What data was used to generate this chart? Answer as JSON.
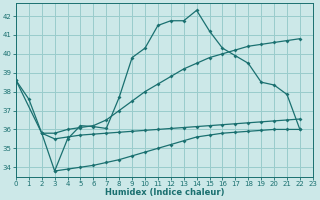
{
  "bg_color": "#cce8e8",
  "grid_color": "#99cccc",
  "line_color": "#1a7070",
  "xlabel": "Humidex (Indice chaleur)",
  "xlim": [
    0,
    23
  ],
  "ylim": [
    33.5,
    42.7
  ],
  "xticks": [
    0,
    1,
    2,
    3,
    4,
    5,
    6,
    7,
    8,
    9,
    10,
    11,
    12,
    13,
    14,
    15,
    16,
    17,
    18,
    19,
    20,
    21,
    22,
    23
  ],
  "yticks": [
    34,
    35,
    36,
    37,
    38,
    39,
    40,
    41,
    42
  ],
  "c1_x": [
    0,
    1,
    2,
    3,
    4,
    5,
    6,
    7,
    8,
    9,
    10,
    11,
    12,
    13,
    14,
    15,
    16,
    17,
    18,
    19,
    20,
    21,
    22
  ],
  "c1_y": [
    38.6,
    37.6,
    35.8,
    33.8,
    35.5,
    36.2,
    36.15,
    36.05,
    37.7,
    39.8,
    40.3,
    41.5,
    41.75,
    41.75,
    42.3,
    41.2,
    40.3,
    39.9,
    39.5,
    38.5,
    38.35,
    37.85,
    36.0
  ],
  "c2_x": [
    0,
    2,
    3,
    4,
    5,
    6,
    7,
    8,
    9,
    10,
    11,
    12,
    13,
    14,
    15,
    16,
    17,
    18,
    19,
    20,
    21,
    22
  ],
  "c2_y": [
    38.6,
    35.8,
    35.8,
    36.0,
    36.1,
    36.2,
    36.5,
    37.0,
    37.5,
    38.0,
    38.4,
    38.8,
    39.2,
    39.5,
    39.8,
    40.0,
    40.2,
    40.4,
    40.5,
    40.6,
    40.7,
    40.8
  ],
  "c3_x": [
    2,
    3,
    4,
    5,
    6,
    7,
    8,
    9,
    10,
    11,
    12,
    13,
    14,
    15,
    16,
    17,
    18,
    19,
    20,
    21,
    22
  ],
  "c3_y": [
    35.8,
    35.5,
    35.6,
    35.7,
    35.75,
    35.8,
    35.85,
    35.9,
    35.95,
    36.0,
    36.05,
    36.1,
    36.15,
    36.2,
    36.25,
    36.3,
    36.35,
    36.4,
    36.45,
    36.5,
    36.55
  ],
  "c4_x": [
    3,
    4,
    5,
    6,
    7,
    8,
    9,
    10,
    11,
    12,
    13,
    14,
    15,
    16,
    17,
    18,
    19,
    20,
    21,
    22
  ],
  "c4_y": [
    33.8,
    33.9,
    34.0,
    34.1,
    34.25,
    34.4,
    34.6,
    34.8,
    35.0,
    35.2,
    35.4,
    35.6,
    35.7,
    35.8,
    35.85,
    35.9,
    35.95,
    36.0,
    36.0,
    36.0
  ]
}
